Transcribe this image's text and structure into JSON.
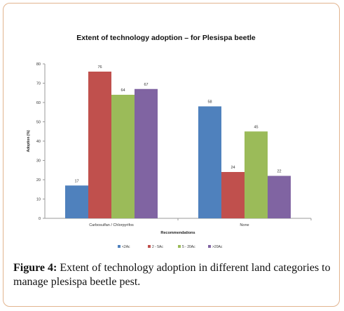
{
  "caption": {
    "label": "Figure 4:",
    "text": " Extent of technology adoption in different land categories to manage plesispa beetle pest."
  },
  "chart_data": {
    "type": "bar",
    "title": "Extent of technology adoption – for Plesispa beetle",
    "xlabel": "Recommendations",
    "ylabel": "Adoption (%)",
    "ylim": [
      0,
      80
    ],
    "yticks": [
      0,
      10,
      20,
      30,
      40,
      50,
      60,
      70,
      80
    ],
    "grid": false,
    "legend_position": "bottom",
    "categories": [
      "Carbosulfan / Chlorpyrifos",
      "None"
    ],
    "series": [
      {
        "name": "<2Ac",
        "color": "#4f81bd",
        "values": [
          17,
          58
        ]
      },
      {
        "name": "2 - 5Ac",
        "color": "#c0504d",
        "values": [
          76,
          24
        ]
      },
      {
        "name": "5 - 20Ac",
        "color": "#9bbb59",
        "values": [
          64,
          45
        ]
      },
      {
        "name": ">20Ac",
        "color": "#8064a2",
        "values": [
          67,
          22
        ]
      }
    ]
  }
}
